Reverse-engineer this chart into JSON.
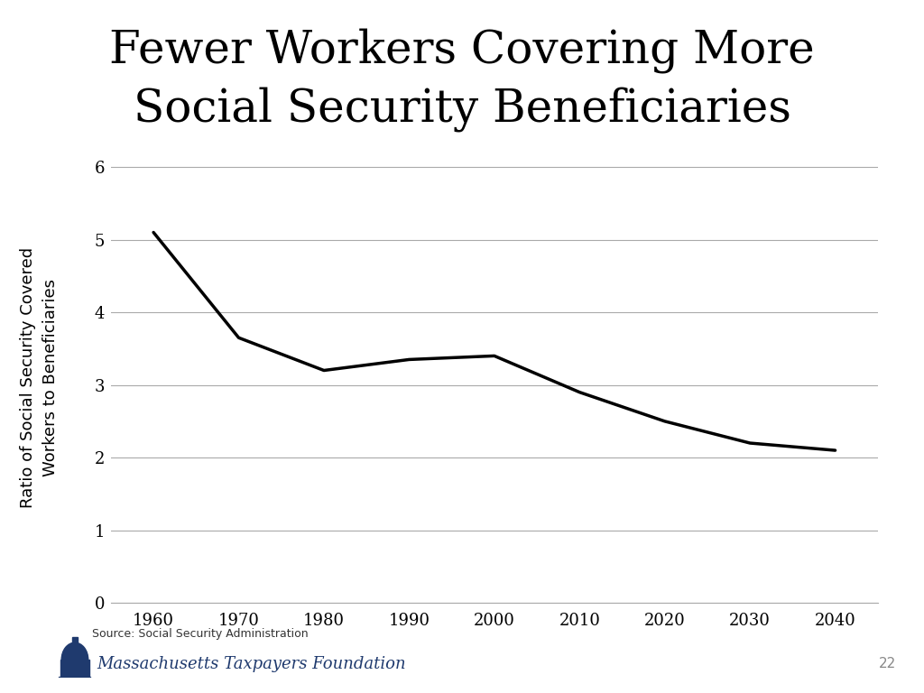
{
  "title_line1": "Fewer Workers Covering More",
  "title_line2": "Social Security Beneficiaries",
  "x_values": [
    1960,
    1970,
    1980,
    1990,
    2000,
    2010,
    2020,
    2030,
    2040
  ],
  "y_values": [
    5.1,
    3.65,
    3.2,
    3.35,
    3.4,
    2.9,
    2.5,
    2.2,
    2.1
  ],
  "ylabel_line1": "Ratio of Social Security Covered",
  "ylabel_line2": "Workers to Beneficiaries",
  "xlim": [
    1955,
    2045
  ],
  "ylim": [
    0,
    6.2
  ],
  "yticks": [
    0,
    1,
    2,
    3,
    4,
    5,
    6
  ],
  "xticks": [
    1960,
    1970,
    1980,
    1990,
    2000,
    2010,
    2020,
    2030,
    2040
  ],
  "line_color": "#000000",
  "line_width": 2.5,
  "background_color": "#ffffff",
  "grid_color": "#aaaaaa",
  "source_text": "Source: Social Security Administration",
  "page_number": "22",
  "title_fontsize": 36,
  "axis_fontsize": 13,
  "footer_color": "#1f3a6e"
}
